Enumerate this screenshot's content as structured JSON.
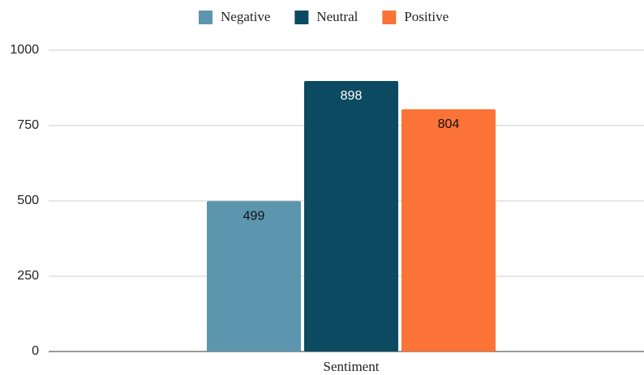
{
  "chart_data": {
    "type": "bar",
    "x_label": "Sentiment",
    "categories": [
      "Sentiment"
    ],
    "series": [
      {
        "name": "Negative",
        "color": "#5b96ae",
        "values": [
          499
        ]
      },
      {
        "name": "Neutral",
        "color": "#0b4a60",
        "values": [
          898
        ]
      },
      {
        "name": "Positive",
        "color": "#fb7336",
        "values": [
          804
        ]
      }
    ],
    "ylim": [
      0,
      1000
    ],
    "yticks": [
      0,
      250,
      500,
      750,
      1000
    ],
    "grid": true,
    "legend": "top"
  }
}
